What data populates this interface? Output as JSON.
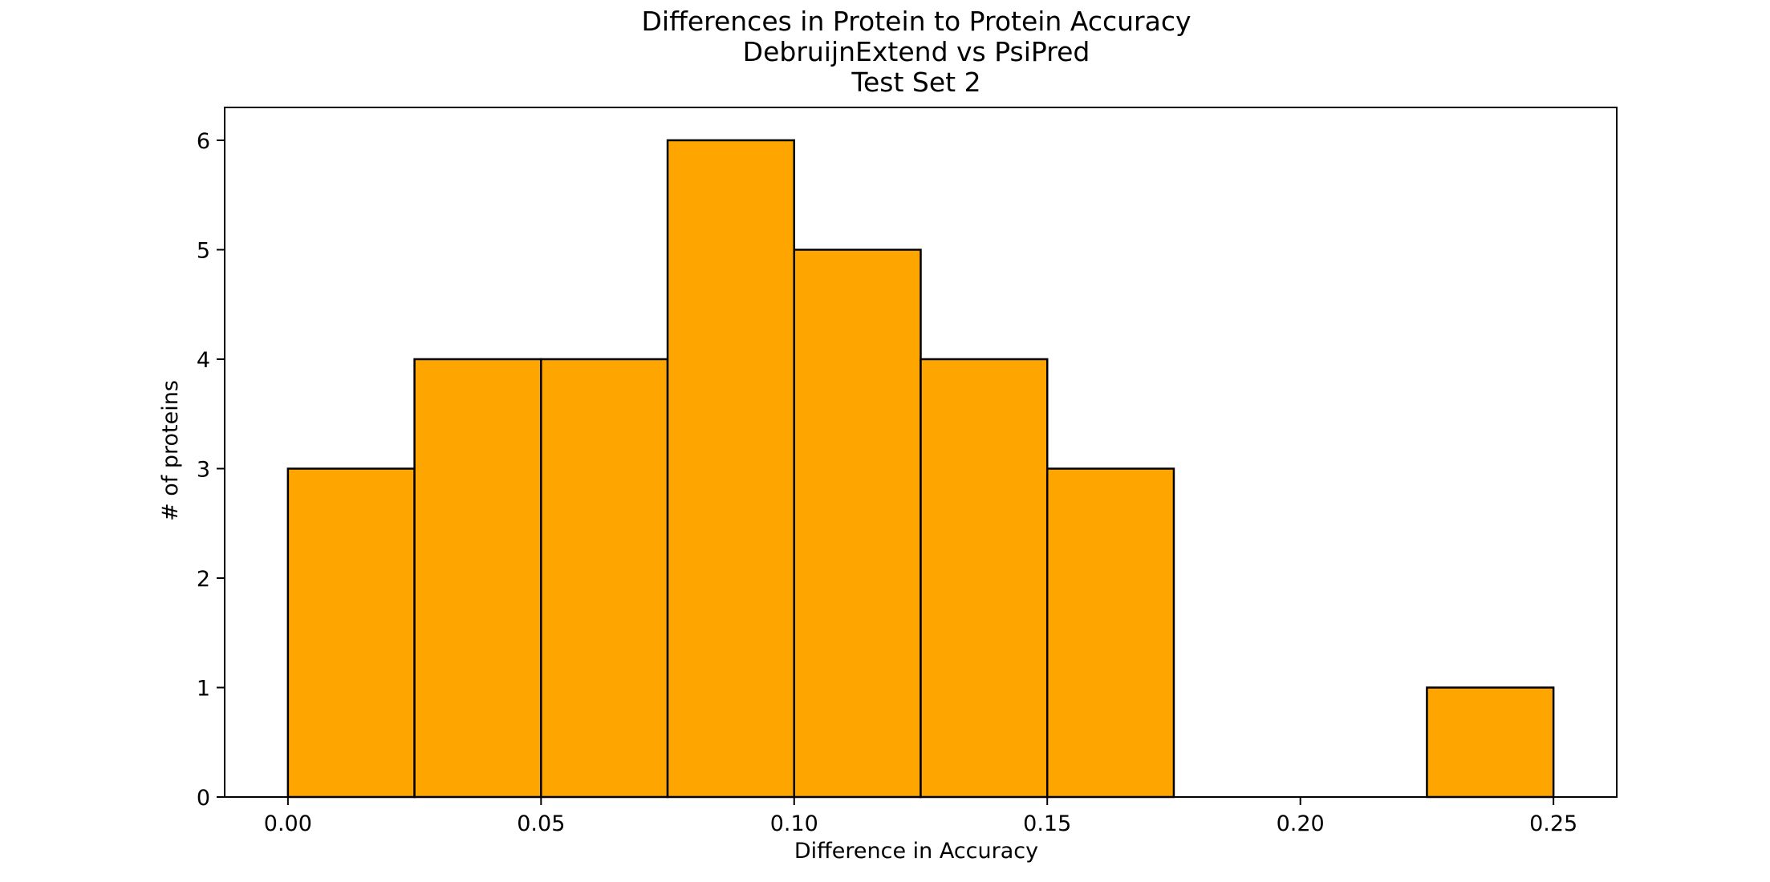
{
  "chart_data": {
    "type": "bar",
    "title": [
      "Differences in Protein to Protein Accuracy",
      "DebruijnExtend vs PsiPred",
      "Test Set 2"
    ],
    "xlabel": "Difference in Accuracy",
    "ylabel": "# of proteins",
    "bins": [
      {
        "x0": 0.0,
        "x1": 0.025,
        "count": 3
      },
      {
        "x0": 0.025,
        "x1": 0.05,
        "count": 4
      },
      {
        "x0": 0.05,
        "x1": 0.075,
        "count": 4
      },
      {
        "x0": 0.075,
        "x1": 0.1,
        "count": 6
      },
      {
        "x0": 0.1,
        "x1": 0.125,
        "count": 5
      },
      {
        "x0": 0.125,
        "x1": 0.15,
        "count": 4
      },
      {
        "x0": 0.15,
        "x1": 0.175,
        "count": 3
      },
      {
        "x0": 0.175,
        "x1": 0.2,
        "count": 0
      },
      {
        "x0": 0.2,
        "x1": 0.225,
        "count": 0
      },
      {
        "x0": 0.225,
        "x1": 0.25,
        "count": 1
      }
    ],
    "xticks": [
      "0.00",
      "0.05",
      "0.10",
      "0.15",
      "0.20",
      "0.25"
    ],
    "yticks": [
      "0",
      "1",
      "2",
      "3",
      "4",
      "5",
      "6"
    ],
    "xlim": [
      -0.0125,
      0.2625
    ],
    "ylim": [
      0,
      6.3
    ],
    "bar_color": "#FFA500",
    "edge_color": "#000000",
    "grid": false,
    "legend": "none"
  }
}
